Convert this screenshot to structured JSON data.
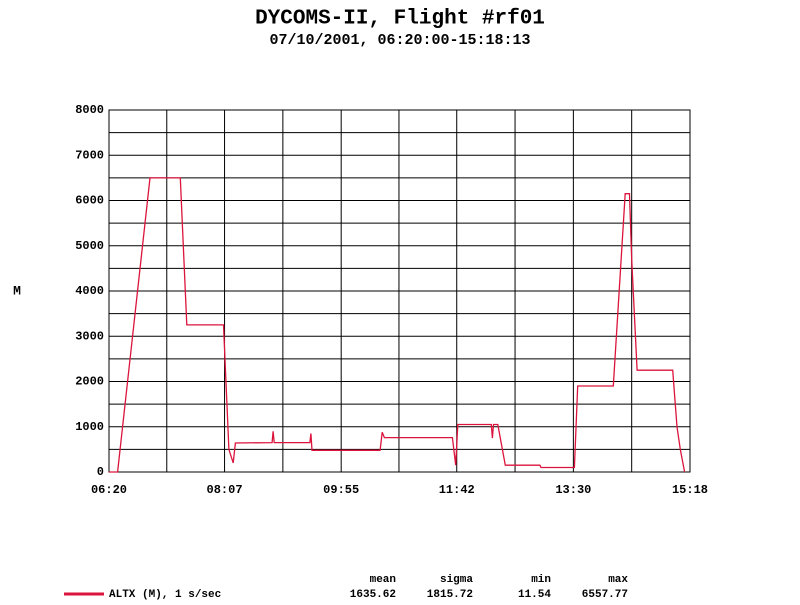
{
  "chart_data": {
    "type": "line",
    "title": "DYCOMS-II, Flight #rf01",
    "subtitle": "07/10/2001, 06:20:00-15:18:13",
    "y_label": "M",
    "x": [
      "06:20",
      "06:28",
      "06:58",
      "07:26",
      "07:32",
      "08:06",
      "08:11",
      "08:15",
      "08:17",
      "08:51",
      "08:52",
      "08:53",
      "09:26",
      "09:27",
      "09:28",
      "10:31",
      "10:33",
      "10:35",
      "11:38",
      "11:41",
      "11:43",
      "12:14",
      "12:15",
      "12:16",
      "12:20",
      "12:27",
      "12:59",
      "13:00",
      "13:31",
      "13:34",
      "14:07",
      "14:18",
      "14:22",
      "14:24",
      "14:29",
      "15:02",
      "15:06",
      "15:09",
      "15:13"
    ],
    "series": [
      {
        "name": "ALTX (M), 1 s/sec",
        "color": "#dc143c",
        "values": [
          0,
          0,
          6500,
          6500,
          3250,
          3250,
          500,
          200,
          640,
          650,
          900,
          650,
          650,
          850,
          480,
          480,
          880,
          760,
          760,
          150,
          1050,
          1050,
          750,
          1050,
          1050,
          150,
          150,
          100,
          100,
          1900,
          1900,
          6150,
          6150,
          4700,
          2250,
          2250,
          1000,
          500,
          0
        ]
      }
    ],
    "xlim": [
      "06:20",
      "15:18"
    ],
    "xticks": [
      "06:20",
      "08:07",
      "09:55",
      "11:42",
      "13:30",
      "15:18"
    ],
    "ylim": [
      0,
      8000
    ],
    "yticks": [
      0,
      1000,
      2000,
      3000,
      4000,
      5000,
      6000,
      7000,
      8000
    ],
    "grid": true,
    "stats": {
      "headers": [
        "mean",
        "sigma",
        "min",
        "max"
      ],
      "values": [
        1635.62,
        1815.72,
        11.54,
        6557.77
      ]
    }
  }
}
